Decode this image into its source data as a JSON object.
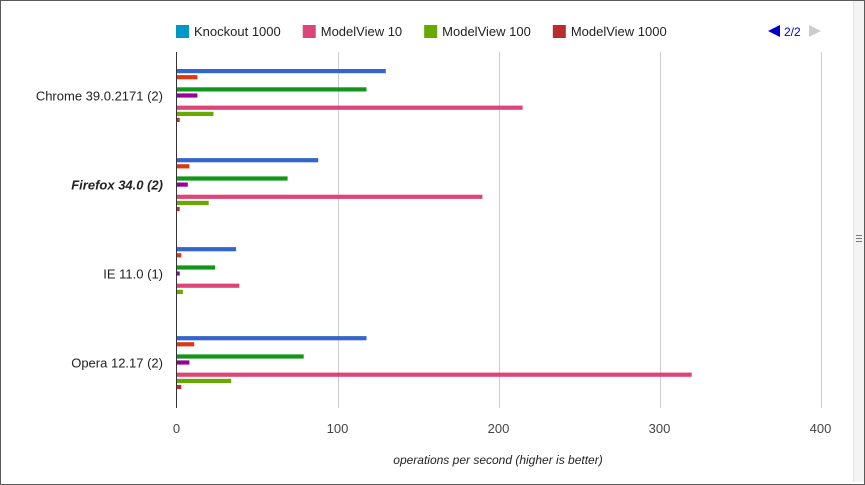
{
  "chart_data": {
    "type": "bar",
    "orientation": "horizontal",
    "title": "",
    "xlabel": "operations per second (higher is better)",
    "ylabel": "",
    "xlim": [
      0,
      400
    ],
    "x_ticks": [
      0,
      100,
      200,
      300,
      400
    ],
    "grid": true,
    "legend_position": "top",
    "categories": [
      "Chrome 39.0.2171 (2)",
      "Firefox 34.0 (2)",
      "IE 11.0 (1)",
      "Opera 12.17 (2)"
    ],
    "highlighted_category": "Firefox 34.0 (2)",
    "series": [
      {
        "name": "",
        "color": "#3366cc",
        "values": [
          130,
          88,
          37,
          118
        ]
      },
      {
        "name": "",
        "color": "#dc3912",
        "values": [
          13,
          8,
          3,
          11
        ]
      },
      {
        "name": "",
        "color": "#ff9900",
        "values": [
          0,
          0,
          0,
          0
        ]
      },
      {
        "name": "",
        "color": "#109618",
        "values": [
          118,
          69,
          24,
          79
        ]
      },
      {
        "name": "",
        "color": "#990099",
        "values": [
          13,
          7,
          2,
          8
        ]
      },
      {
        "name": "",
        "color": "#0099c6",
        "values": [
          0,
          0,
          0,
          0
        ]
      },
      {
        "name": "ModelView 10",
        "color": "#dd4477",
        "values": [
          215,
          190,
          39,
          320
        ]
      },
      {
        "name": "ModelView 100",
        "color": "#66aa00",
        "values": [
          23,
          20,
          4,
          34
        ]
      },
      {
        "name": "ModelView 1000",
        "color": "#b82e2e",
        "values": [
          2,
          2,
          0,
          3
        ]
      }
    ],
    "legend": [
      {
        "name": "Knockout 1000",
        "color": "#0099c6"
      },
      {
        "name": "ModelView 10",
        "color": "#dd4477"
      },
      {
        "name": "ModelView 100",
        "color": "#66aa00"
      },
      {
        "name": "ModelView 1000",
        "color": "#b82e2e"
      }
    ]
  },
  "legend_pager": {
    "text": "2/2",
    "prev_color": "#0000cc",
    "next_color": "#cccccc"
  }
}
